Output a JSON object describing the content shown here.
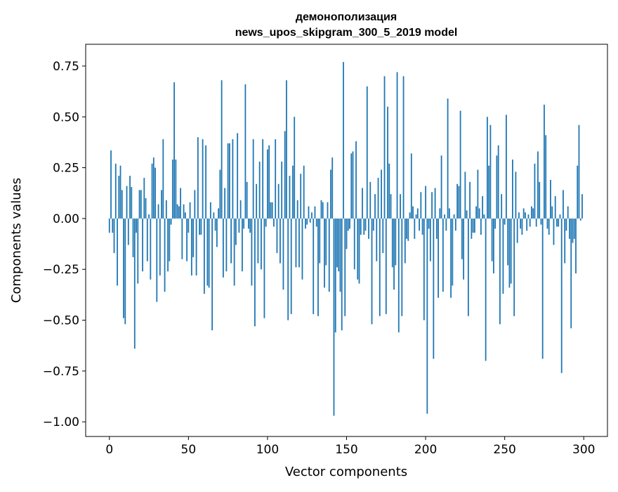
{
  "chart_data": {
    "type": "bar",
    "title_line1": "демонополизация",
    "title_line2": "news_upos_skipgram_300_5_2019 model",
    "xlabel": "Vector components",
    "ylabel": "Components values",
    "xlim": [
      -15,
      315
    ],
    "ylim": [
      -1.072,
      0.857
    ],
    "xticks": [
      0,
      50,
      100,
      150,
      200,
      250,
      300
    ],
    "xtick_labels": [
      "0",
      "50",
      "100",
      "150",
      "200",
      "250",
      "300"
    ],
    "yticks": [
      0.75,
      0.5,
      0.25,
      0.0,
      -0.25,
      -0.5,
      -0.75,
      -1.0
    ],
    "ytick_labels": [
      "0.75",
      "0.50",
      "0.25",
      "0.00",
      "−0.25",
      "−0.50",
      "−0.75",
      "−1.00"
    ],
    "bar_color": "#1f77b4",
    "grid": false,
    "values": [
      -0.07,
      0.335,
      -0.07,
      -0.17,
      0.27,
      -0.33,
      0.21,
      0.26,
      0.14,
      -0.49,
      -0.52,
      0.16,
      -0.13,
      0.21,
      0.155,
      -0.19,
      -0.64,
      -0.07,
      -0.32,
      0.14,
      0.14,
      -0.26,
      0.2,
      0.1,
      -0.21,
      0.02,
      -0.3,
      0.27,
      0.3,
      0.25,
      -0.41,
      0.07,
      -0.28,
      0.14,
      0.39,
      -0.36,
      0.09,
      -0.26,
      -0.21,
      -0.03,
      0.29,
      0.67,
      0.29,
      0.07,
      0.06,
      0.15,
      -0.2,
      0.07,
      0.03,
      -0.21,
      -0.07,
      0.08,
      -0.28,
      -0.19,
      0.14,
      -0.28,
      0.4,
      -0.08,
      -0.08,
      0.39,
      -0.37,
      0.36,
      -0.33,
      -0.34,
      0.08,
      -0.55,
      0.03,
      -0.06,
      -0.14,
      0.05,
      0.24,
      0.68,
      -0.29,
      0.15,
      -0.26,
      0.37,
      0.37,
      -0.22,
      0.39,
      -0.33,
      -0.13,
      0.42,
      -0.07,
      0.09,
      -0.26,
      -0.05,
      0.66,
      0.18,
      -0.05,
      -0.07,
      -0.33,
      0.39,
      -0.53,
      0.17,
      -0.22,
      0.28,
      -0.25,
      0.39,
      -0.49,
      -0.04,
      0.34,
      0.36,
      0.08,
      0.08,
      -0.04,
      0.39,
      -0.17,
      0.17,
      -0.22,
      0.28,
      -0.35,
      0.43,
      0.68,
      -0.5,
      0.21,
      -0.47,
      0.26,
      0.5,
      -0.24,
      0.09,
      -0.24,
      0.22,
      -0.3,
      0.26,
      -0.05,
      -0.03,
      0.06,
      -0.02,
      0.03,
      -0.47,
      0.06,
      -0.04,
      -0.48,
      -0.22,
      0.09,
      0.08,
      -0.34,
      -0.23,
      0.08,
      -0.36,
      0.24,
      0.3,
      -0.97,
      -0.56,
      -0.24,
      -0.26,
      -0.36,
      -0.55,
      0.77,
      -0.48,
      -0.15,
      -0.06,
      -0.05,
      0.32,
      0.33,
      -0.25,
      0.38,
      -0.3,
      -0.32,
      -0.08,
      0.15,
      -0.08,
      -0.06,
      0.65,
      -0.1,
      0.18,
      -0.52,
      -0.06,
      0.12,
      -0.21,
      0.2,
      -0.48,
      0.24,
      -0.17,
      0.7,
      -0.47,
      0.55,
      0.27,
      0.12,
      -0.24,
      -0.35,
      -0.23,
      0.72,
      -0.56,
      0.12,
      -0.48,
      0.7,
      -0.22,
      -0.1,
      -0.11,
      0.03,
      0.32,
      0.06,
      -0.1,
      0.02,
      0.05,
      -0.06,
      0.13,
      -0.08,
      -0.5,
      0.16,
      -0.96,
      -0.05,
      -0.21,
      0.13,
      -0.69,
      0.15,
      -0.1,
      -0.39,
      0.05,
      0.31,
      -0.36,
      0.02,
      -0.06,
      0.59,
      0.05,
      -0.39,
      -0.33,
      0.02,
      -0.06,
      0.17,
      0.16,
      0.53,
      -0.2,
      -0.3,
      0.23,
      0.04,
      -0.48,
      0.18,
      -0.1,
      -0.07,
      -0.07,
      0.06,
      0.24,
      0.05,
      -0.08,
      0.11,
      0.02,
      -0.7,
      0.5,
      0.26,
      0.46,
      -0.21,
      -0.27,
      -0.05,
      0.31,
      0.36,
      -0.52,
      0.12,
      -0.37,
      -0.03,
      0.51,
      -0.23,
      -0.34,
      -0.32,
      0.29,
      -0.48,
      0.23,
      -0.12,
      0.03,
      -0.05,
      -0.08,
      0.05,
      0.03,
      -0.06,
      0.02,
      -0.04,
      0.06,
      0.05,
      0.27,
      -0.04,
      0.33,
      0.18,
      -0.03,
      -0.69,
      0.56,
      0.41,
      -0.05,
      -0.08,
      0.19,
      0.06,
      -0.13,
      0.11,
      -0.04,
      -0.04,
      0.02,
      -0.76,
      0.14,
      -0.22,
      -0.06,
      0.06,
      -0.1,
      -0.54,
      -0.12,
      -0.1,
      -0.27,
      0.26,
      0.46,
      -0.01,
      0.12
    ]
  }
}
